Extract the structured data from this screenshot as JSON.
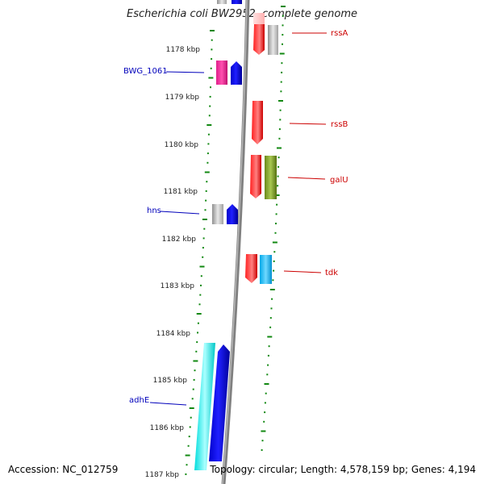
{
  "title": "Escherichia coli BW2952, complete genome",
  "accession": "Accession: NC_012759",
  "topology_summary": "Topology: circular; Length: 4,578,159 bp; Genes: 4,194",
  "colors": {
    "backbone": "#808080",
    "tick": "#118811",
    "label_forward": "#0000bb",
    "label_reverse": "#cc0000"
  },
  "kbp_ticks": [
    "1178 kbp",
    "1179 kbp",
    "1180 kbp",
    "1181 kbp",
    "1182 kbp",
    "1183 kbp",
    "1184 kbp",
    "1185 kbp",
    "1186 kbp",
    "1187 kbp"
  ],
  "gene_labels": [
    {
      "name": "rssA",
      "side": "right"
    },
    {
      "name": "BWG_1061",
      "side": "left"
    },
    {
      "name": "rssB",
      "side": "right"
    },
    {
      "name": "galU",
      "side": "right"
    },
    {
      "name": "hns",
      "side": "left"
    },
    {
      "name": "tdk",
      "side": "right"
    },
    {
      "name": "adhE",
      "side": "left"
    }
  ]
}
